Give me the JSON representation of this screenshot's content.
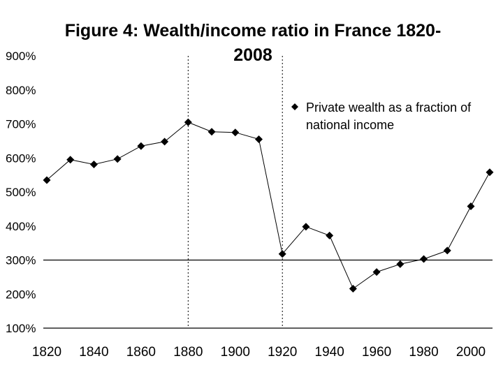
{
  "chart_data": {
    "type": "line",
    "title": "Figure 4: Wealth/income ratio in France 1820-",
    "title_line2": "2008",
    "xlabel": "",
    "ylabel": "",
    "ylim": [
      100,
      900
    ],
    "xlim": [
      1820,
      2008
    ],
    "y_ticks": [
      "100%",
      "200%",
      "300%",
      "400%",
      "500%",
      "600%",
      "700%",
      "800%",
      "900%"
    ],
    "y_tick_values": [
      100,
      200,
      300,
      400,
      500,
      600,
      700,
      800,
      900
    ],
    "x_ticks": [
      "1820",
      "1840",
      "1860",
      "1880",
      "1900",
      "1920",
      "1940",
      "1960",
      "1980",
      "2000"
    ],
    "x_tick_values": [
      1820,
      1840,
      1860,
      1880,
      1900,
      1920,
      1940,
      1960,
      1980,
      2000
    ],
    "reference_line_y": 300,
    "vertical_markers": [
      1880,
      1920
    ],
    "legend": {
      "position": "top-right",
      "line1": "Private wealth as a fraction of",
      "line2": "national income"
    },
    "series": [
      {
        "name": "Private wealth as a fraction of national income",
        "x": [
          1820,
          1830,
          1840,
          1850,
          1860,
          1870,
          1880,
          1890,
          1900,
          1910,
          1920,
          1930,
          1940,
          1950,
          1960,
          1970,
          1980,
          1990,
          2000,
          2008
        ],
        "y": [
          535,
          595,
          581,
          597,
          635,
          648,
          705,
          677,
          675,
          655,
          318,
          398,
          372,
          216,
          265,
          288,
          303,
          328,
          458,
          558
        ]
      }
    ],
    "colors": {
      "line": "#000000",
      "marker": "#000000",
      "axis": "#000000"
    }
  }
}
